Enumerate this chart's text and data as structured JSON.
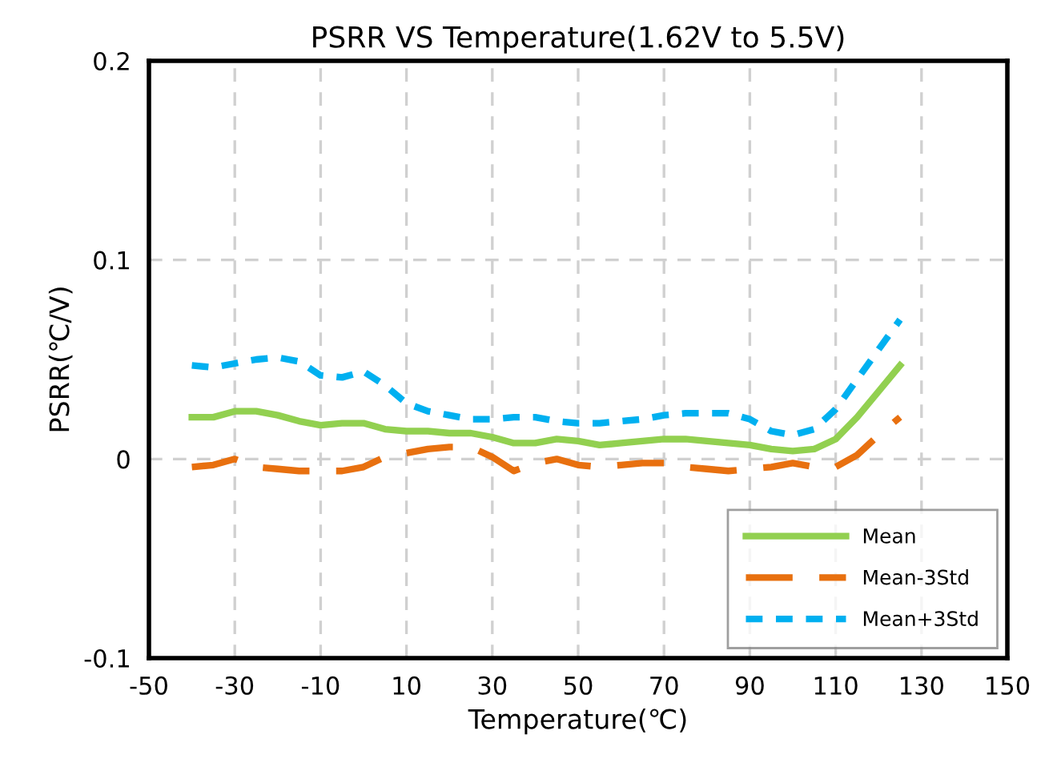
{
  "chart_data": {
    "type": "line",
    "title": "PSRR VS Temperature(1.62V to 5.5V)",
    "xlabel": "Temperature(℃)",
    "ylabel": "PSRR(℃/V)",
    "x": [
      -40,
      -35,
      -30,
      -25,
      -20,
      -15,
      -10,
      -5,
      0,
      5,
      10,
      15,
      20,
      25,
      30,
      35,
      40,
      45,
      50,
      55,
      60,
      65,
      70,
      75,
      80,
      85,
      90,
      95,
      100,
      105,
      110,
      115,
      120,
      125
    ],
    "series": [
      {
        "name": "Mean",
        "color": "#92d050",
        "line_style": "solid",
        "values": [
          0.021,
          0.021,
          0.024,
          0.024,
          0.022,
          0.019,
          0.017,
          0.018,
          0.018,
          0.015,
          0.014,
          0.014,
          0.013,
          0.013,
          0.011,
          0.008,
          0.008,
          0.01,
          0.009,
          0.007,
          0.008,
          0.009,
          0.01,
          0.01,
          0.009,
          0.008,
          0.007,
          0.005,
          0.004,
          0.005,
          0.01,
          0.021,
          0.034,
          0.047
        ]
      },
      {
        "name": "Mean-3Std",
        "color": "#e8700f",
        "line_style": "dashed",
        "values": [
          -0.004,
          -0.003,
          0.0,
          -0.004,
          -0.005,
          -0.006,
          -0.006,
          -0.006,
          -0.004,
          0.001,
          0.003,
          0.005,
          0.006,
          0.006,
          0.001,
          -0.006,
          -0.002,
          0.0,
          -0.003,
          -0.004,
          -0.003,
          -0.002,
          -0.002,
          -0.004,
          -0.005,
          -0.006,
          -0.005,
          -0.004,
          -0.002,
          -0.004,
          -0.004,
          0.002,
          0.012,
          0.021
        ]
      },
      {
        "name": "Mean+3Std",
        "color": "#00b0f0",
        "line_style": "dotted",
        "values": [
          0.047,
          0.046,
          0.048,
          0.05,
          0.051,
          0.049,
          0.042,
          0.041,
          0.044,
          0.037,
          0.028,
          0.024,
          0.022,
          0.02,
          0.02,
          0.021,
          0.021,
          0.019,
          0.018,
          0.018,
          0.019,
          0.02,
          0.022,
          0.023,
          0.023,
          0.023,
          0.02,
          0.014,
          0.012,
          0.015,
          0.025,
          0.04,
          0.055,
          0.07
        ]
      }
    ],
    "xlim": [
      -50,
      150
    ],
    "xticks": [
      -50,
      -30,
      -10,
      10,
      30,
      50,
      70,
      90,
      110,
      130,
      150
    ],
    "ylim": [
      -0.1,
      0.2
    ],
    "yticks": [
      -0.1,
      0,
      0.1,
      0.2
    ],
    "grid": true,
    "legend": "bottom right"
  }
}
